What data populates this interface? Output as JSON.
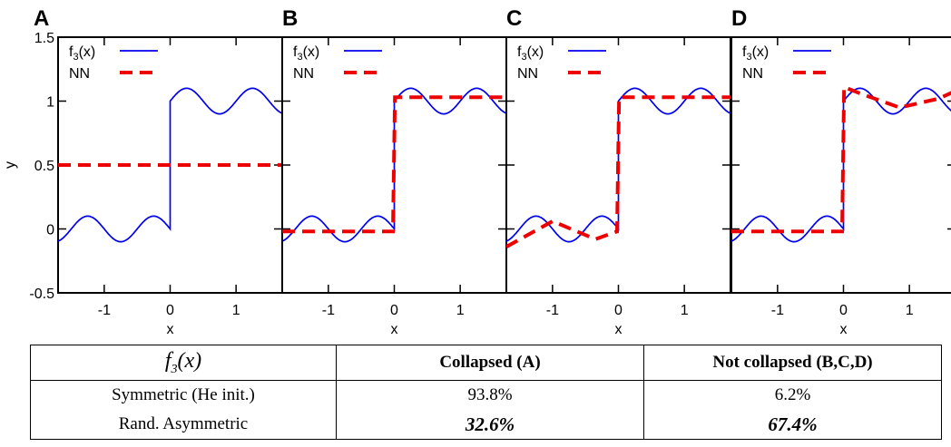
{
  "chart_data": [
    {
      "type": "line",
      "panel": "A",
      "xlabel": "x",
      "ylabel": "y",
      "xlim": [
        -1.7,
        1.7
      ],
      "ylim": [
        -0.5,
        1.5
      ],
      "xticks": [
        "-1",
        "0",
        "1"
      ],
      "yticks": [
        "-0.5",
        "0",
        "0.5",
        "1",
        "1.5"
      ],
      "legend": [
        "f3(x)",
        "NN"
      ],
      "legend_position": "top-left",
      "series": [
        {
          "name": "f3(x)",
          "color": "#0000ee",
          "style": "solid",
          "formula": "x<0 ? -0.1*sin(2*pi*x) : 1 + 0.1*sin(2*pi*x)"
        },
        {
          "name": "NN",
          "color": "#ee0000",
          "style": "dashed",
          "x": [
            -1.7,
            1.7
          ],
          "y": [
            0.5,
            0.5
          ]
        }
      ]
    },
    {
      "type": "line",
      "panel": "B",
      "xlabel": "x",
      "ylabel": "",
      "xlim": [
        -1.7,
        1.7
      ],
      "ylim": [
        -0.5,
        1.5
      ],
      "xticks": [
        "-1",
        "0",
        "1"
      ],
      "legend": [
        "f3(x)",
        "NN"
      ],
      "legend_position": "top-left",
      "series": [
        {
          "name": "f3(x)",
          "color": "#0000ee",
          "style": "solid",
          "formula": "x<0 ? -0.1*sin(2*pi*x) : 1 + 0.1*sin(2*pi*x)"
        },
        {
          "name": "NN",
          "color": "#ee0000",
          "style": "dashed",
          "x": [
            -1.7,
            -0.02,
            0.01,
            1.7
          ],
          "y": [
            -0.02,
            -0.02,
            1.03,
            1.03
          ]
        }
      ]
    },
    {
      "type": "line",
      "panel": "C",
      "xlabel": "x",
      "ylabel": "",
      "xlim": [
        -1.7,
        1.7
      ],
      "ylim": [
        -0.5,
        1.5
      ],
      "xticks": [
        "-1",
        "0",
        "1"
      ],
      "legend": [
        "f3(x)",
        "NN"
      ],
      "legend_position": "top-left",
      "series": [
        {
          "name": "f3(x)",
          "color": "#0000ee",
          "style": "solid",
          "formula": "x<0 ? -0.1*sin(2*pi*x) : 1 + 0.1*sin(2*pi*x)"
        },
        {
          "name": "NN",
          "color": "#ee0000",
          "style": "dashed",
          "x": [
            -1.7,
            -1.0,
            -0.35,
            -0.02,
            0.01,
            1.7
          ],
          "y": [
            -0.14,
            0.06,
            -0.08,
            -0.02,
            1.03,
            1.03
          ]
        }
      ]
    },
    {
      "type": "line",
      "panel": "D",
      "xlabel": "x",
      "ylabel": "",
      "xlim": [
        -1.7,
        1.7
      ],
      "ylim": [
        -0.5,
        1.5
      ],
      "xticks": [
        "-1",
        "0",
        "1"
      ],
      "legend": [
        "f3(x)",
        "NN"
      ],
      "legend_position": "top-left",
      "series": [
        {
          "name": "f3(x)",
          "color": "#0000ee",
          "style": "solid",
          "formula": "x<0 ? -0.1*sin(2*pi*x) : 1 + 0.1*sin(2*pi*x)"
        },
        {
          "name": "NN",
          "color": "#ee0000",
          "style": "dashed",
          "x": [
            -1.7,
            -0.02,
            0.01,
            0.25,
            0.85,
            1.45,
            1.7
          ],
          "y": [
            -0.02,
            -0.02,
            1.11,
            1.06,
            0.95,
            1.02,
            1.08
          ]
        }
      ]
    }
  ],
  "table": {
    "header_func": "f",
    "header_sub": "3",
    "header_arg": "(x)",
    "col_collapsed": "Collapsed (A)",
    "col_not_collapsed": "Not collapsed (B,C,D)",
    "rows": [
      {
        "label": "Symmetric (He init.)",
        "collapsed": "93.8%",
        "not_collapsed": "6.2%"
      },
      {
        "label": "Rand. Asymmetric",
        "collapsed": "32.6%",
        "not_collapsed": "67.4%"
      }
    ]
  }
}
